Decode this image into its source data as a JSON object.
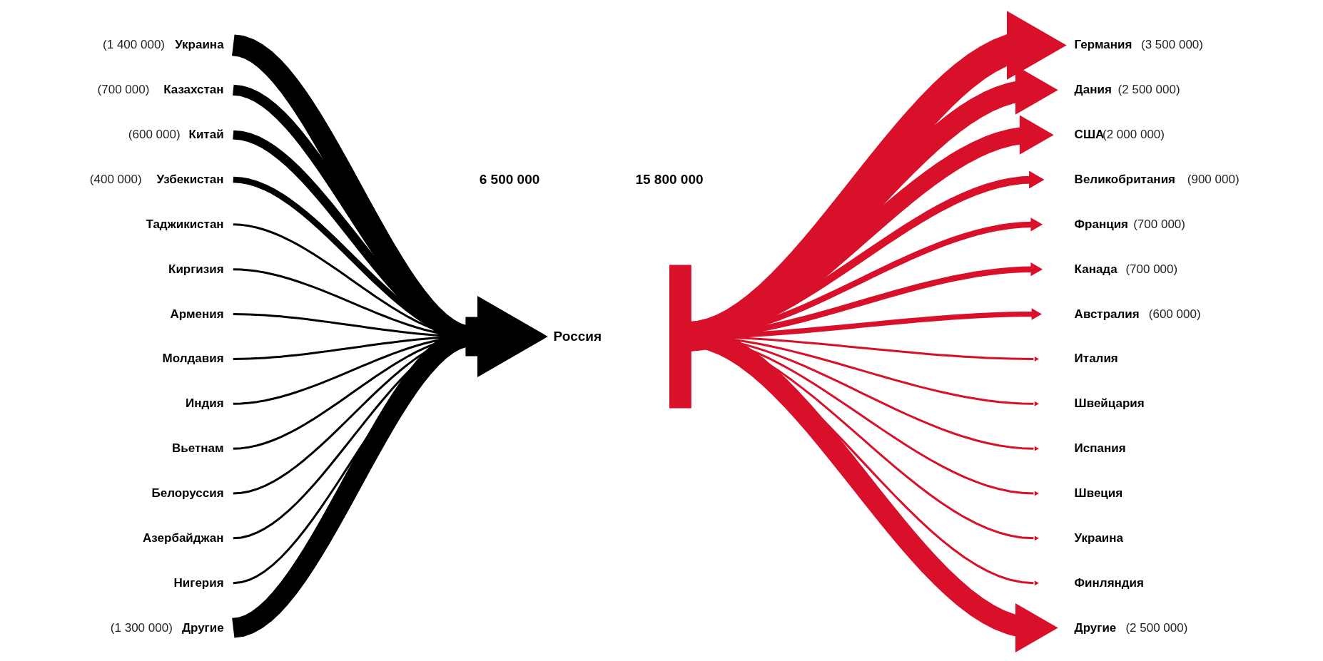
{
  "chart_data": [
    {
      "type": "other",
      "color": "#000000",
      "categories": [
        "Украина",
        "Казахстан",
        "Китай",
        "Узбекистан",
        "Таджикистан",
        "Киргизия",
        "Армения",
        "Молдавия",
        "Индия",
        "Вьетнам",
        "Белоруссия",
        "Азербайджан",
        "Нигерия",
        "Другие"
      ],
      "values": [
        1400000,
        700000,
        600000,
        400000,
        null,
        null,
        null,
        null,
        null,
        null,
        null,
        null,
        null,
        1300000
      ],
      "value_labels": [
        "(1 400 000)",
        "(700 000)",
        "(600 000)",
        "(400 000)",
        null,
        null,
        null,
        null,
        null,
        null,
        null,
        null,
        null,
        "(1 300 000)"
      ],
      "annotations": [
        "6 500 000",
        "Россия"
      ]
    },
    {
      "type": "other",
      "color": "#d8102a",
      "categories": [
        "Германия",
        "Дания",
        "США",
        "Великобритания",
        "Франция",
        "Канада",
        "Австралия",
        "Италия",
        "Швейцария",
        "Испания",
        "Швеция",
        "Украина",
        "Финляндия",
        "Другие"
      ],
      "values": [
        3500000,
        2500000,
        2000000,
        900000,
        700000,
        700000,
        600000,
        null,
        null,
        null,
        null,
        null,
        null,
        2500000
      ],
      "value_labels": [
        "(3 500 000)",
        "(2 500 000)",
        "(2 000 000)",
        "(900 000)",
        "(700 000)",
        "(700 000)",
        "(600 000)",
        null,
        null,
        null,
        null,
        null,
        null,
        "(2 500 000)"
      ],
      "annotations": [
        "15 800 000"
      ]
    }
  ]
}
